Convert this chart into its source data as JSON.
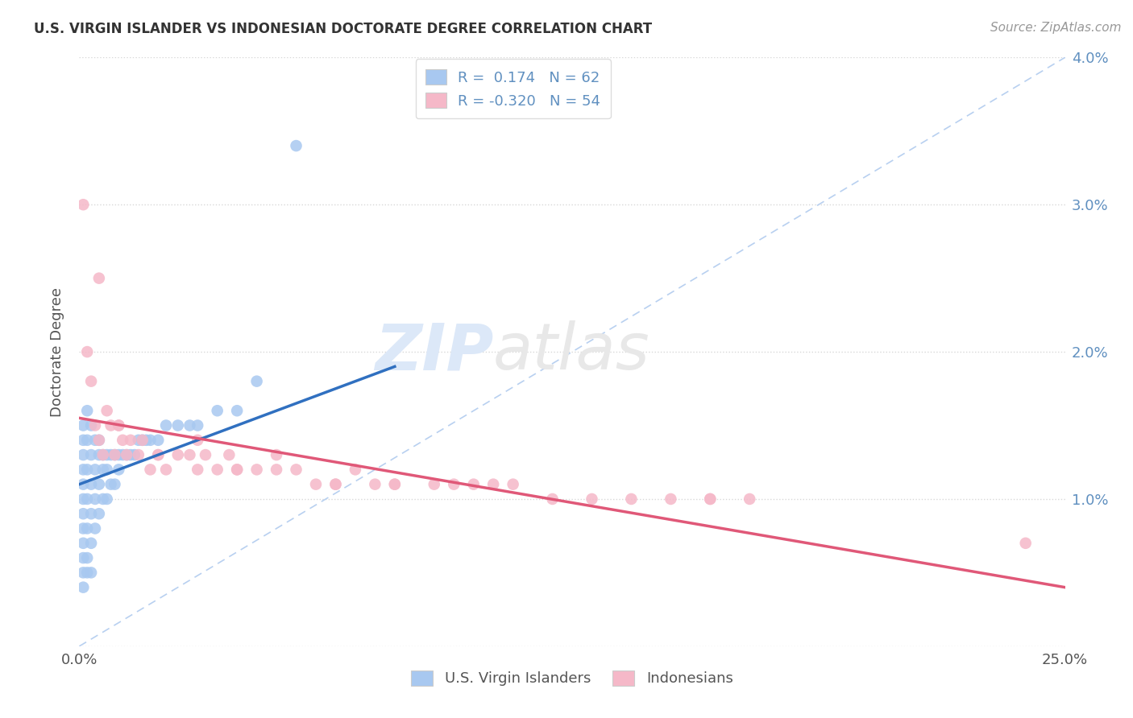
{
  "title": "U.S. VIRGIN ISLANDER VS INDONESIAN DOCTORATE DEGREE CORRELATION CHART",
  "source": "Source: ZipAtlas.com",
  "ylabel": "Doctorate Degree",
  "x_min": 0.0,
  "x_max": 0.25,
  "y_min": 0.0,
  "y_max": 0.04,
  "blue_R": 0.174,
  "blue_N": 62,
  "pink_R": -0.32,
  "pink_N": 54,
  "blue_label": "U.S. Virgin Islanders",
  "pink_label": "Indonesians",
  "blue_color": "#a8c8f0",
  "pink_color": "#f5b8c8",
  "blue_line_color": "#3070c0",
  "pink_line_color": "#e05878",
  "diag_color": "#b8d0f0",
  "background_color": "#ffffff",
  "grid_color": "#d8d8d8",
  "title_color": "#333333",
  "axis_color": "#6090c0",
  "watermark_color": "#dce8f8",
  "blue_x": [
    0.001,
    0.001,
    0.001,
    0.001,
    0.001,
    0.001,
    0.001,
    0.001,
    0.001,
    0.001,
    0.001,
    0.001,
    0.002,
    0.002,
    0.002,
    0.002,
    0.002,
    0.002,
    0.002,
    0.003,
    0.003,
    0.003,
    0.003,
    0.003,
    0.003,
    0.004,
    0.004,
    0.004,
    0.004,
    0.005,
    0.005,
    0.005,
    0.005,
    0.006,
    0.006,
    0.006,
    0.007,
    0.007,
    0.007,
    0.008,
    0.008,
    0.009,
    0.009,
    0.01,
    0.01,
    0.011,
    0.012,
    0.013,
    0.014,
    0.015,
    0.016,
    0.017,
    0.018,
    0.02,
    0.022,
    0.025,
    0.028,
    0.03,
    0.035,
    0.04,
    0.045,
    0.055
  ],
  "blue_y": [
    0.015,
    0.014,
    0.013,
    0.012,
    0.011,
    0.01,
    0.009,
    0.008,
    0.007,
    0.006,
    0.005,
    0.004,
    0.016,
    0.014,
    0.012,
    0.01,
    0.008,
    0.006,
    0.005,
    0.015,
    0.013,
    0.011,
    0.009,
    0.007,
    0.005,
    0.014,
    0.012,
    0.01,
    0.008,
    0.014,
    0.013,
    0.011,
    0.009,
    0.013,
    0.012,
    0.01,
    0.013,
    0.012,
    0.01,
    0.013,
    0.011,
    0.013,
    0.011,
    0.013,
    0.012,
    0.013,
    0.013,
    0.013,
    0.013,
    0.014,
    0.014,
    0.014,
    0.014,
    0.014,
    0.015,
    0.015,
    0.015,
    0.015,
    0.016,
    0.016,
    0.018,
    0.034
  ],
  "pink_x": [
    0.001,
    0.002,
    0.003,
    0.004,
    0.005,
    0.006,
    0.007,
    0.008,
    0.009,
    0.01,
    0.011,
    0.012,
    0.013,
    0.015,
    0.016,
    0.018,
    0.02,
    0.022,
    0.025,
    0.028,
    0.03,
    0.032,
    0.035,
    0.038,
    0.04,
    0.045,
    0.05,
    0.055,
    0.06,
    0.065,
    0.07,
    0.075,
    0.08,
    0.09,
    0.095,
    0.1,
    0.105,
    0.11,
    0.12,
    0.13,
    0.14,
    0.15,
    0.16,
    0.17,
    0.005,
    0.01,
    0.02,
    0.03,
    0.04,
    0.05,
    0.065,
    0.08,
    0.16,
    0.24
  ],
  "pink_y": [
    0.03,
    0.02,
    0.018,
    0.015,
    0.014,
    0.013,
    0.016,
    0.015,
    0.013,
    0.015,
    0.014,
    0.013,
    0.014,
    0.013,
    0.014,
    0.012,
    0.013,
    0.012,
    0.013,
    0.013,
    0.014,
    0.013,
    0.012,
    0.013,
    0.012,
    0.012,
    0.012,
    0.012,
    0.011,
    0.011,
    0.012,
    0.011,
    0.011,
    0.011,
    0.011,
    0.011,
    0.011,
    0.011,
    0.01,
    0.01,
    0.01,
    0.01,
    0.01,
    0.01,
    0.025,
    0.015,
    0.013,
    0.012,
    0.012,
    0.013,
    0.011,
    0.011,
    0.01,
    0.007
  ],
  "blue_line_x0": 0.0,
  "blue_line_y0": 0.011,
  "blue_line_x1": 0.08,
  "blue_line_y1": 0.019,
  "pink_line_x0": 0.0,
  "pink_line_y0": 0.0155,
  "pink_line_x1": 0.25,
  "pink_line_y1": 0.004
}
